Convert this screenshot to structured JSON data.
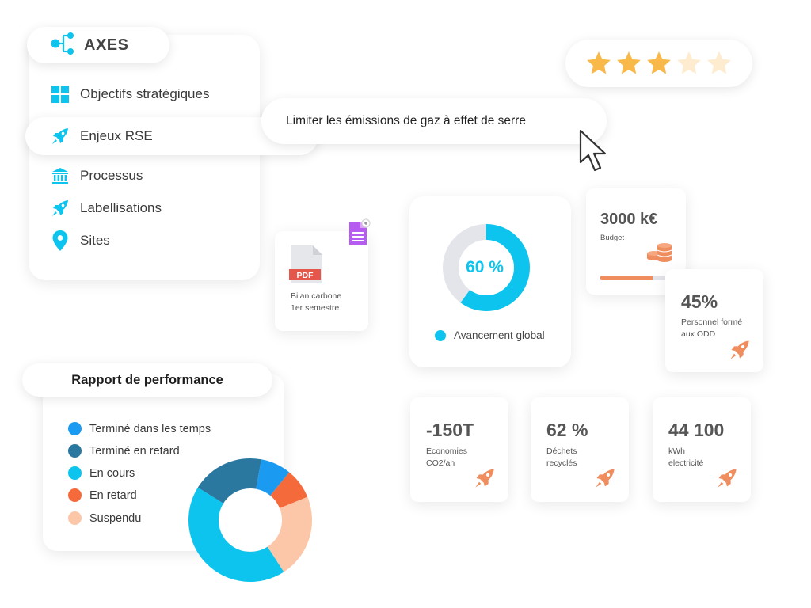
{
  "axes": {
    "title": "AXES",
    "items": [
      {
        "label": "Objectifs stratégiques",
        "icon": "grid-icon"
      },
      {
        "label": "Enjeux RSE",
        "icon": "rocket-icon"
      },
      {
        "label": "Processus",
        "icon": "institution-icon"
      },
      {
        "label": "Labellisations",
        "icon": "rocket-icon"
      },
      {
        "label": "Sites",
        "icon": "location-pin-icon"
      }
    ]
  },
  "tooltip": {
    "text": "Limiter les émissions de gaz à effet de serre"
  },
  "rating": {
    "value": 3,
    "max": 5,
    "color": "#f8b84a",
    "empty_color": "#fdeccf"
  },
  "pdf": {
    "badge": "PDF",
    "label_line1": "Bilan carbone",
    "label_line2": "1er semestre"
  },
  "global": {
    "percent_text": "60 %",
    "percent": 60,
    "legend": "Avancement global",
    "color": "#0cc4ed",
    "track_color": "#e3e5ea"
  },
  "budget": {
    "value": "3000 k€",
    "label": "Budget",
    "progress": 0.73
  },
  "stats": {
    "odd": {
      "value": "45%",
      "line1": "Personnel formé",
      "line2": "aux ODD"
    },
    "co2": {
      "value": "-150T",
      "line1": "Economies",
      "line2": "CO2/an"
    },
    "dechets": {
      "value": "62 %",
      "line1": "Déchets",
      "line2": "recyclés"
    },
    "kwh": {
      "value": "44 100",
      "line1": "kWh",
      "line2": "electricité"
    }
  },
  "performance": {
    "title": "Rapport de performance",
    "legend": [
      {
        "label": "Terminé dans les temps",
        "color": "#1a9af0"
      },
      {
        "label": "Terminé en retard",
        "color": "#2a77a0"
      },
      {
        "label": "En cours",
        "color": "#0cc4ed"
      },
      {
        "label": "En retard",
        "color": "#f56a3a"
      },
      {
        "label": "Suspendu",
        "color": "#fcc6a8"
      }
    ],
    "slices": [
      {
        "name": "Terminé dans les temps",
        "value": 8
      },
      {
        "name": "En retard",
        "value": 8
      },
      {
        "name": "Suspendu",
        "value": 22
      },
      {
        "name": "En cours",
        "value": 43
      },
      {
        "name": "Terminé en retard",
        "value": 19
      }
    ]
  },
  "colors": {
    "accent": "#0cc4ed",
    "orange": "#f08d5e",
    "pdf_red": "#e5574a",
    "doc_purple": "#b65cf0"
  }
}
